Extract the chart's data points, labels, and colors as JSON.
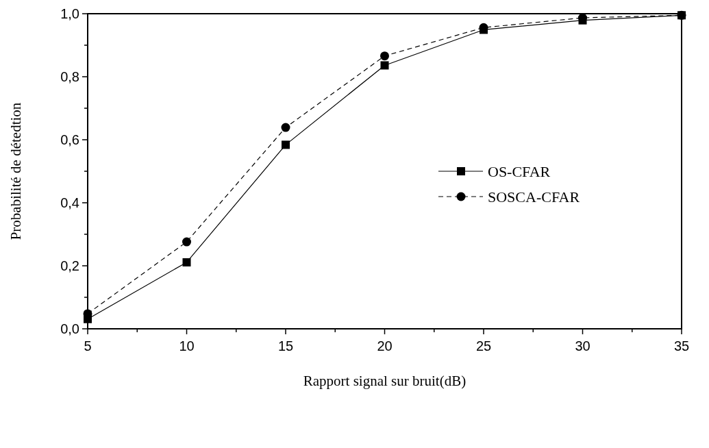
{
  "chart_data": {
    "type": "line",
    "xlabel": "Rapport signal sur bruit(dB)",
    "ylabel": "Probabilité de détedtion",
    "x": [
      5,
      10,
      15,
      20,
      25,
      30,
      35
    ],
    "series": [
      {
        "name": "OS-CFAR",
        "color": "#000000",
        "marker": "square",
        "line_style": "solid",
        "values": [
          0.031,
          0.211,
          0.584,
          0.836,
          0.949,
          0.979,
          0.995
        ]
      },
      {
        "name": "SOSCA-CFAR",
        "color": "#000000",
        "marker": "circle",
        "line_style": "dashed",
        "values": [
          0.048,
          0.276,
          0.639,
          0.866,
          0.956,
          0.987,
          0.995
        ]
      }
    ],
    "xlim": [
      5,
      35
    ],
    "xticks": [
      5,
      {
        "value": 7.5,
        "label": null
      },
      10,
      {
        "value": 12.5,
        "label": null
      },
      15,
      {
        "value": 17.5,
        "label": null
      },
      20,
      {
        "value": 22.5,
        "label": null
      },
      25,
      {
        "value": 27.5,
        "label": null
      },
      30,
      {
        "value": 32.5,
        "label": null
      },
      35
    ],
    "ylim": [
      0,
      1
    ],
    "yticks": [
      {
        "value": 0,
        "label": "0,0"
      },
      {
        "value": 0.1,
        "label": null
      },
      {
        "value": 0.2,
        "label": "0,2"
      },
      {
        "value": 0.3,
        "label": null
      },
      {
        "value": 0.4,
        "label": "0,4"
      },
      {
        "value": 0.5,
        "label": null
      },
      {
        "value": 0.6,
        "label": "0,6"
      },
      {
        "value": 0.7,
        "label": null
      },
      {
        "value": 0.8,
        "label": "0,8"
      },
      {
        "value": 0.9,
        "label": null
      },
      {
        "value": 1,
        "label": "1,0"
      }
    ],
    "grid": false,
    "legend": "right"
  }
}
